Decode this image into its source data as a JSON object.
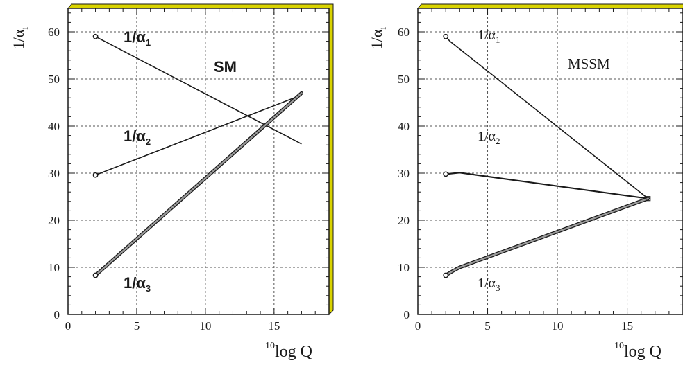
{
  "chart_data": [
    {
      "type": "line",
      "title": "SM",
      "xlabel_sup": "10",
      "xlabel": "log Q",
      "ylabel": "1/α",
      "ylabel_sub": "i",
      "xlim": [
        0,
        19
      ],
      "ylim": [
        0,
        65
      ],
      "xticks": [
        0,
        5,
        10,
        15
      ],
      "yticks": [
        0,
        10,
        20,
        30,
        40,
        50,
        60
      ],
      "grid": true,
      "series": [
        {
          "name": "1/α",
          "sub": "1",
          "x": [
            2,
            17
          ],
          "y": [
            59,
            36.2
          ],
          "style": "thin"
        },
        {
          "name": "1/α",
          "sub": "2",
          "x": [
            2,
            17
          ],
          "y": [
            29.6,
            46.6
          ],
          "style": "thin"
        },
        {
          "name": "1/α",
          "sub": "3",
          "x": [
            2,
            17
          ],
          "y": [
            8.3,
            47
          ],
          "style": "band"
        }
      ]
    },
    {
      "type": "line",
      "title": "MSSM",
      "xlabel_sup": "10",
      "xlabel": "log Q",
      "ylabel": "1/α",
      "ylabel_sub": "i",
      "xlim": [
        0,
        19
      ],
      "ylim": [
        0,
        65
      ],
      "xticks": [
        0,
        5,
        10,
        15
      ],
      "yticks": [
        0,
        10,
        20,
        30,
        40,
        50,
        60
      ],
      "grid": true,
      "series": [
        {
          "name": "1/α",
          "sub": "1",
          "x": [
            2,
            2.3,
            16.5
          ],
          "y": [
            59,
            58,
            24.6
          ],
          "style": "thin"
        },
        {
          "name": "1/α",
          "sub": "2",
          "x": [
            2,
            3,
            16.5
          ],
          "y": [
            29.8,
            30.1,
            24.6
          ],
          "style": "medium"
        },
        {
          "name": "1/α",
          "sub": "3",
          "x": [
            2,
            2.5,
            3,
            16.5
          ],
          "y": [
            8.3,
            9.2,
            10,
            24.6
          ],
          "style": "band"
        }
      ]
    }
  ],
  "colors": {
    "axis": "#1a1a1a",
    "grid": "#555555",
    "frame_shadow": "#d9d300",
    "band_fill": "#9a9a9a"
  }
}
